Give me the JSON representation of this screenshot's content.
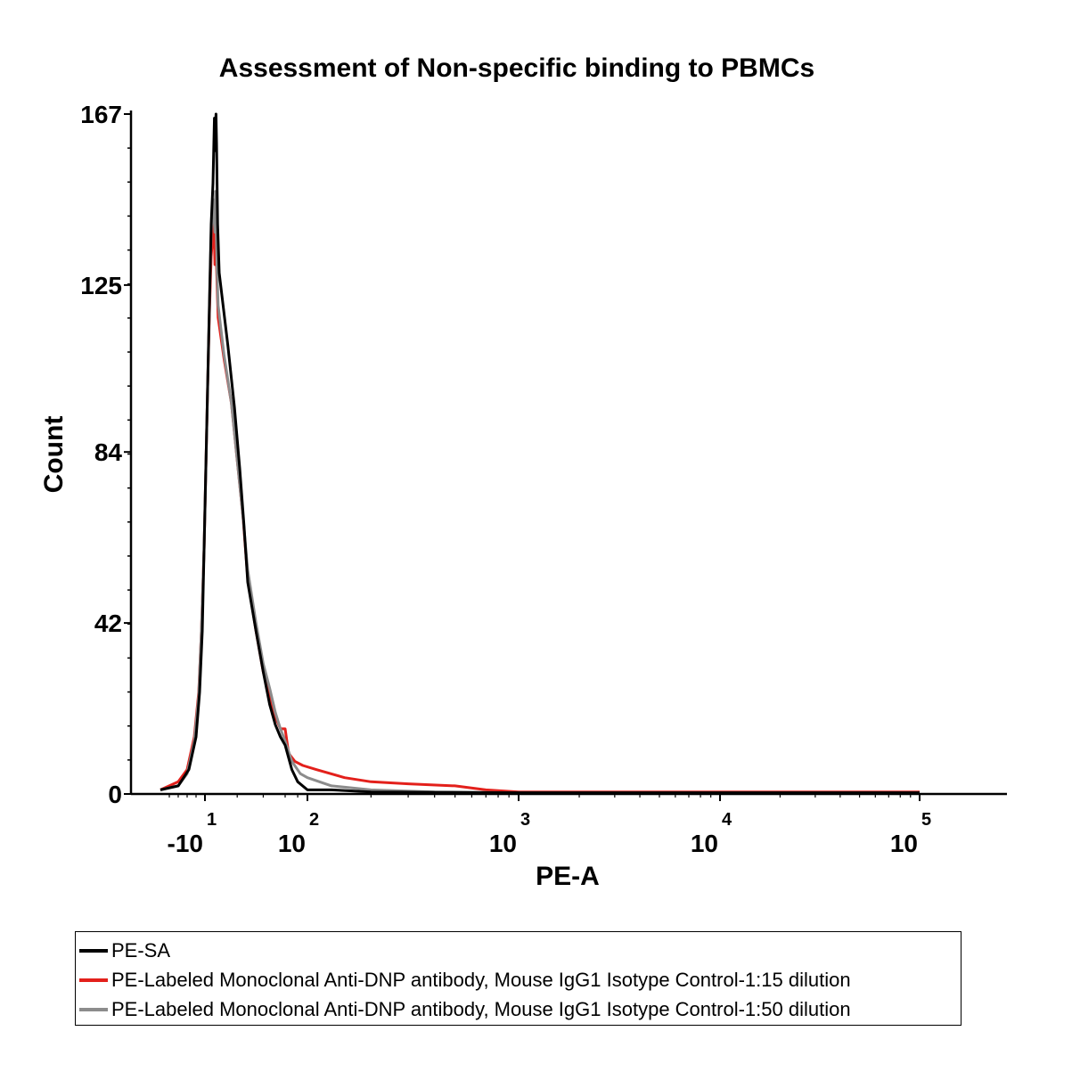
{
  "chart_data": {
    "type": "line",
    "title": "Assessment of Non-specific binding to PBMCs",
    "xlabel": "PE-A",
    "ylabel": "Count",
    "xscale": "biexponential",
    "ylim": [
      0,
      167
    ],
    "yticks": [
      "0",
      "42",
      "84",
      "125",
      "167"
    ],
    "xticks": [
      {
        "base": "-10",
        "exp": "1",
        "value": -10
      },
      {
        "base": "10",
        "exp": "2",
        "value": 100
      },
      {
        "base": "10",
        "exp": "3",
        "value": 1000
      },
      {
        "base": "10",
        "exp": "4",
        "value": 10000
      },
      {
        "base": "10",
        "exp": "5",
        "value": 100000
      }
    ],
    "grid": false,
    "legend_position": "bottom",
    "series": [
      {
        "name": "PE-SA",
        "color": "#000000",
        "points": [
          [
            -60,
            1
          ],
          [
            -40,
            2
          ],
          [
            -28,
            6
          ],
          [
            -20,
            14
          ],
          [
            -16,
            25
          ],
          [
            -13,
            40
          ],
          [
            -11,
            60
          ],
          [
            -9,
            80
          ],
          [
            -7,
            100
          ],
          [
            -5,
            120
          ],
          [
            -3,
            140
          ],
          [
            -1,
            150
          ],
          [
            0,
            160
          ],
          [
            1,
            166
          ],
          [
            2,
            158
          ],
          [
            3,
            164
          ],
          [
            4,
            167
          ],
          [
            5,
            160
          ],
          [
            7,
            140
          ],
          [
            10,
            128
          ],
          [
            14,
            110
          ],
          [
            18,
            95
          ],
          [
            22,
            80
          ],
          [
            26,
            66
          ],
          [
            30,
            52
          ],
          [
            35,
            40
          ],
          [
            40,
            30
          ],
          [
            45,
            22
          ],
          [
            50,
            17
          ],
          [
            55,
            14
          ],
          [
            60,
            12
          ],
          [
            70,
            6
          ],
          [
            80,
            3
          ],
          [
            100,
            1
          ],
          [
            130,
            1
          ],
          [
            200,
            0.5
          ],
          [
            1000,
            0.3
          ],
          [
            10000,
            0.3
          ],
          [
            100000,
            0.3
          ]
        ]
      },
      {
        "name": "PE-Labeled Monoclonal Anti-DNP antibody, Mouse IgG1 Isotype Control-1:15 dilution",
        "color": "#e3201b",
        "points": [
          [
            -60,
            1
          ],
          [
            -40,
            3
          ],
          [
            -30,
            6
          ],
          [
            -22,
            14
          ],
          [
            -17,
            25
          ],
          [
            -14,
            40
          ],
          [
            -11,
            60
          ],
          [
            -9,
            80
          ],
          [
            -7,
            100
          ],
          [
            -5,
            118
          ],
          [
            -3,
            132
          ],
          [
            -1,
            138
          ],
          [
            0,
            140
          ],
          [
            1,
            135
          ],
          [
            2,
            130
          ],
          [
            3,
            138
          ],
          [
            4,
            134
          ],
          [
            6,
            125
          ],
          [
            8,
            117
          ],
          [
            12,
            107
          ],
          [
            16,
            96
          ],
          [
            20,
            82
          ],
          [
            25,
            68
          ],
          [
            30,
            53
          ],
          [
            35,
            40
          ],
          [
            40,
            30
          ],
          [
            45,
            24
          ],
          [
            50,
            19
          ],
          [
            55,
            16
          ],
          [
            60,
            16
          ],
          [
            65,
            10
          ],
          [
            75,
            8
          ],
          [
            90,
            7
          ],
          [
            110,
            6
          ],
          [
            150,
            4
          ],
          [
            200,
            3
          ],
          [
            300,
            2.5
          ],
          [
            500,
            2
          ],
          [
            700,
            1
          ],
          [
            1000,
            0.5
          ],
          [
            10000,
            0.5
          ],
          [
            100000,
            0.5
          ]
        ]
      },
      {
        "name": "PE-Labeled Monoclonal Anti-DNP antibody, Mouse IgG1 Isotype Control-1:50 dilution",
        "color": "#8c8c8c",
        "points": [
          [
            -60,
            1
          ],
          [
            -40,
            2
          ],
          [
            -30,
            5
          ],
          [
            -22,
            13
          ],
          [
            -17,
            24
          ],
          [
            -14,
            40
          ],
          [
            -11,
            60
          ],
          [
            -9,
            80
          ],
          [
            -7,
            100
          ],
          [
            -5,
            120
          ],
          [
            -3,
            138
          ],
          [
            -1,
            146
          ],
          [
            0,
            142
          ],
          [
            1,
            140
          ],
          [
            2,
            138
          ],
          [
            3,
            148
          ],
          [
            4,
            142
          ],
          [
            6,
            128
          ],
          [
            8,
            120
          ],
          [
            12,
            108
          ],
          [
            16,
            96
          ],
          [
            20,
            82
          ],
          [
            25,
            68
          ],
          [
            30,
            55
          ],
          [
            35,
            42
          ],
          [
            40,
            32
          ],
          [
            45,
            26
          ],
          [
            50,
            20
          ],
          [
            55,
            16
          ],
          [
            60,
            13
          ],
          [
            70,
            8
          ],
          [
            85,
            5
          ],
          [
            100,
            4
          ],
          [
            130,
            2
          ],
          [
            200,
            1
          ],
          [
            400,
            0.5
          ],
          [
            1000,
            0.3
          ],
          [
            10000,
            0.3
          ],
          [
            100000,
            0.3
          ]
        ]
      }
    ]
  }
}
